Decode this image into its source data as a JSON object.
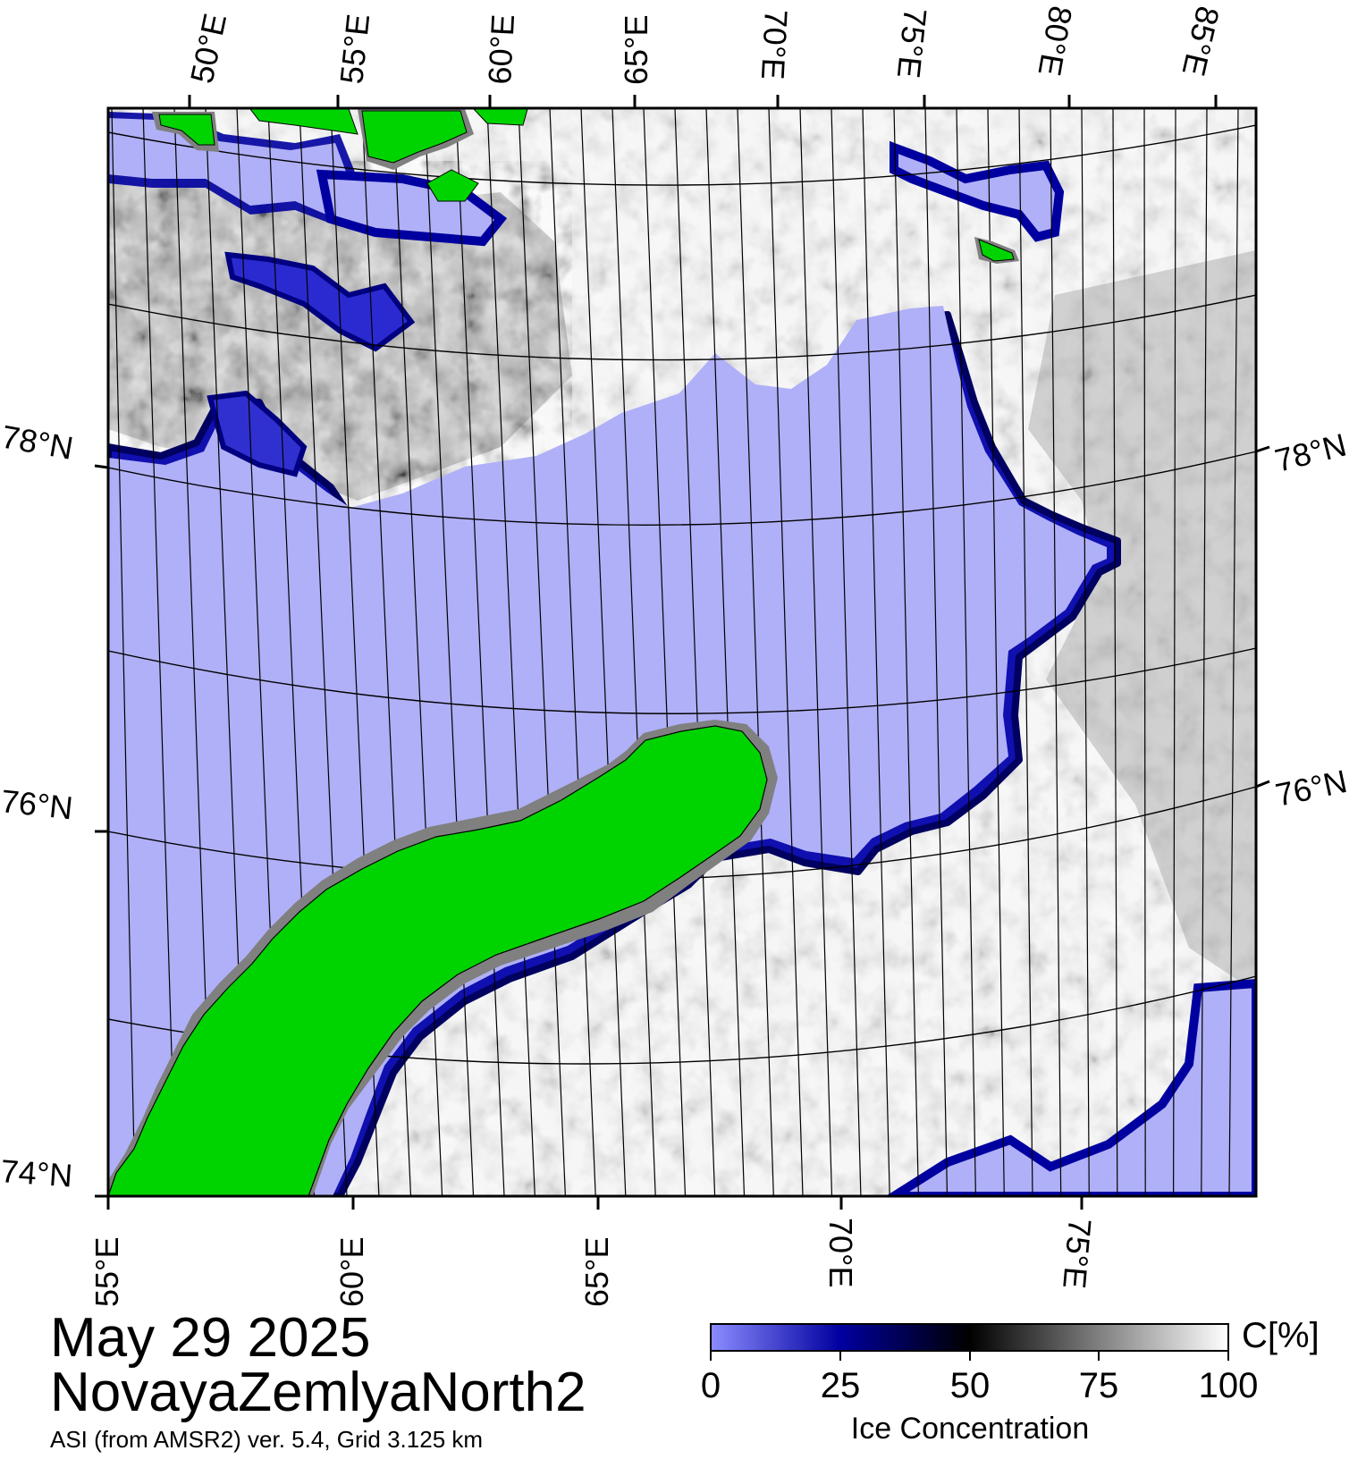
{
  "map": {
    "date": "May 29 2025",
    "region": "NovayaZemlyaNorth2",
    "source": "ASI (from AMSR2) ver. 5.4,  Grid 3.125 km",
    "top_lon_labels": [
      "50°E",
      "55°E",
      "60°E",
      "65°E",
      "70°E",
      "75°E",
      "80°E",
      "85°E"
    ],
    "bottom_lon_labels": [
      "55°E",
      "60°E",
      "65°E",
      "70°E",
      "75°E"
    ],
    "left_lat_labels": [
      "78°N",
      "76°N",
      "74°N"
    ],
    "right_lat_labels": [
      "78°N",
      "76°N"
    ],
    "colors": {
      "open_water": "#b0b0f8",
      "land": "#00d400",
      "coast_mask": "#808080",
      "low_ice_edge": "#0000a0",
      "high_ice": "#ffffff"
    }
  },
  "colorbar": {
    "title": "Ice Concentration",
    "unit": "C[%]",
    "ticks": [
      "0",
      "25",
      "50",
      "75",
      "100"
    ],
    "min": 0,
    "max": 100,
    "gradient_colors": [
      "#8c8cff",
      "#0000a0",
      "#000000",
      "#ffffff"
    ]
  }
}
